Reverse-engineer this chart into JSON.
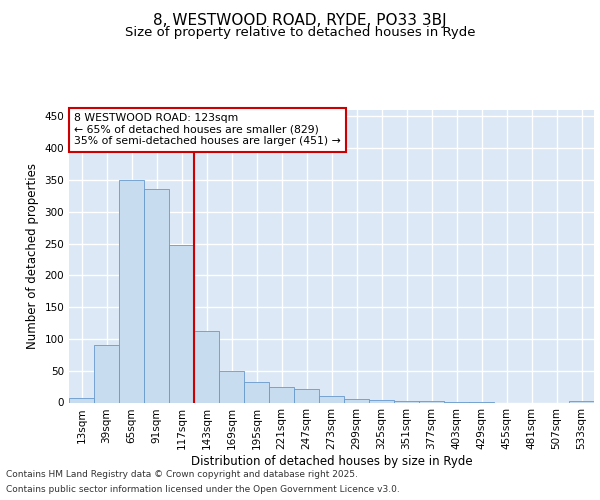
{
  "title1": "8, WESTWOOD ROAD, RYDE, PO33 3BJ",
  "title2": "Size of property relative to detached houses in Ryde",
  "xlabel": "Distribution of detached houses by size in Ryde",
  "ylabel": "Number of detached properties",
  "categories": [
    "13sqm",
    "39sqm",
    "65sqm",
    "91sqm",
    "117sqm",
    "143sqm",
    "169sqm",
    "195sqm",
    "221sqm",
    "247sqm",
    "273sqm",
    "299sqm",
    "325sqm",
    "351sqm",
    "377sqm",
    "403sqm",
    "429sqm",
    "455sqm",
    "481sqm",
    "507sqm",
    "533sqm"
  ],
  "values": [
    7,
    90,
    350,
    335,
    248,
    113,
    50,
    33,
    25,
    21,
    10,
    5,
    4,
    3,
    2,
    1,
    1,
    0,
    0,
    0,
    2
  ],
  "bar_color": "#c8dcf0",
  "bar_edge_color": "#6699cc",
  "vline_color": "#cc0000",
  "annotation_text": "8 WESTWOOD ROAD: 123sqm\n← 65% of detached houses are smaller (829)\n35% of semi-detached houses are larger (451) →",
  "annotation_box_color": "#ffffff",
  "annotation_box_edge": "#cc0000",
  "bg_color": "#ffffff",
  "plot_bg_color": "#dce8f5",
  "grid_color": "#ffffff",
  "ylim": [
    0,
    460
  ],
  "yticks": [
    0,
    50,
    100,
    150,
    200,
    250,
    300,
    350,
    400,
    450
  ],
  "footer1": "Contains HM Land Registry data © Crown copyright and database right 2025.",
  "footer2": "Contains public sector information licensed under the Open Government Licence v3.0.",
  "title_fontsize": 11,
  "subtitle_fontsize": 9.5,
  "tick_fontsize": 7.5,
  "ylabel_fontsize": 8.5,
  "xlabel_fontsize": 8.5,
  "footer_fontsize": 6.5
}
